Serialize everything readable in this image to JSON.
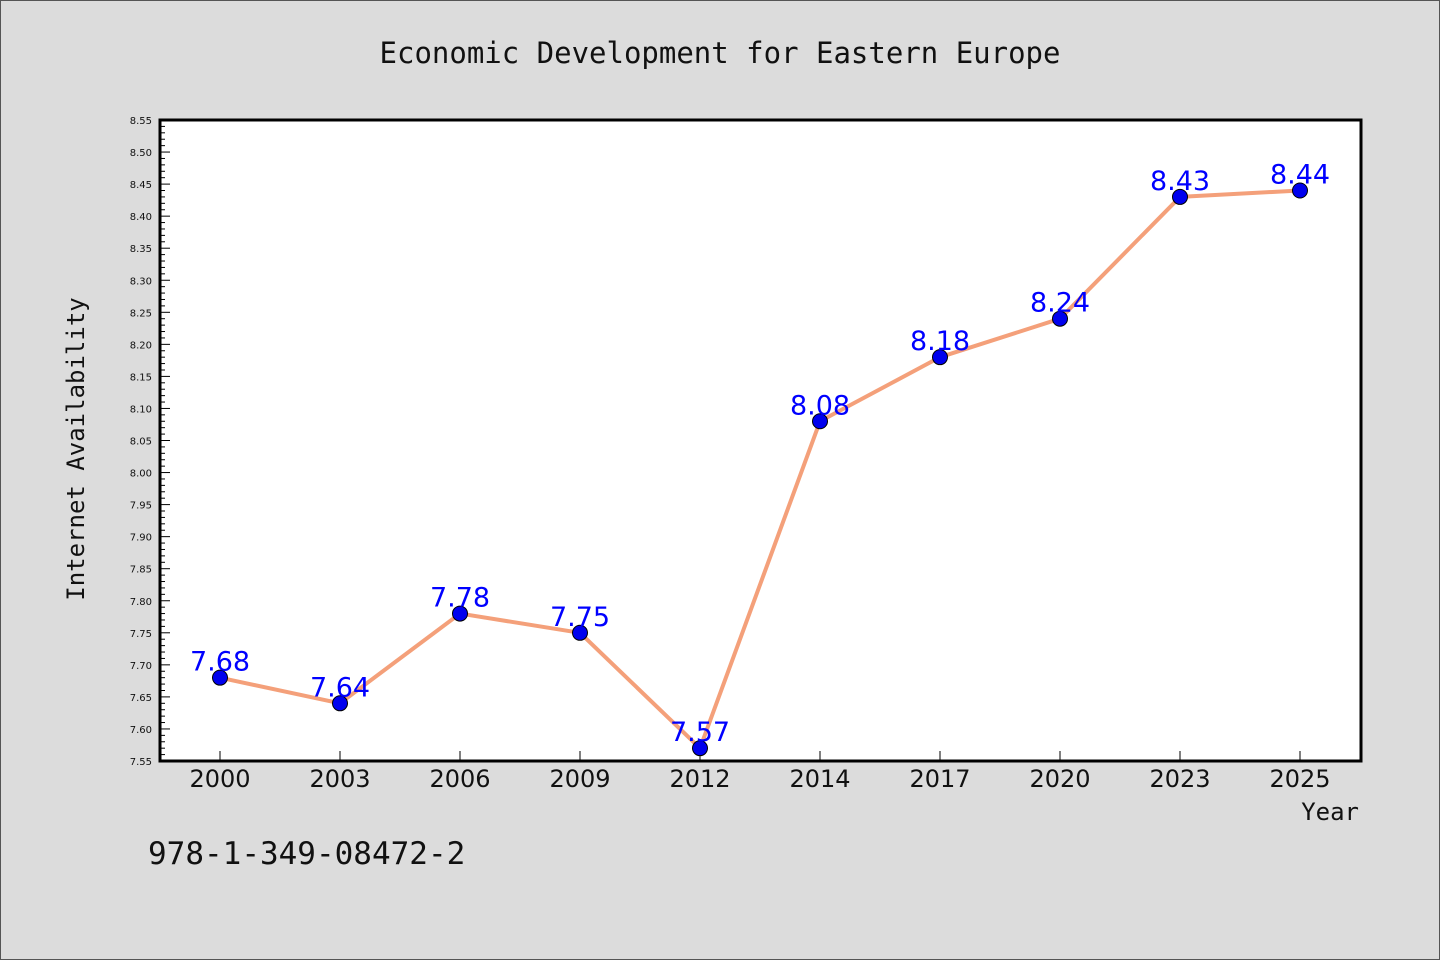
{
  "chart_data": {
    "type": "line",
    "title": "Economic Development for Eastern Europe",
    "xlabel": "Year",
    "ylabel": "Internet Availability",
    "categories": [
      "2000",
      "2003",
      "2006",
      "2009",
      "2012",
      "2014",
      "2017",
      "2020",
      "2023",
      "2025"
    ],
    "values": [
      7.68,
      7.64,
      7.78,
      7.75,
      7.57,
      8.08,
      8.18,
      8.24,
      8.43,
      8.44
    ],
    "data_labels": [
      "7.68",
      "7.64",
      "7.78",
      "7.75",
      "7.57",
      "8.08",
      "8.18",
      "8.24",
      "8.43",
      "8.44"
    ],
    "ylim": [
      7.55,
      8.55
    ],
    "yticks": [
      "7.55",
      "7.60",
      "7.65",
      "7.70",
      "7.75",
      "7.80",
      "7.85",
      "7.90",
      "7.95",
      "8.00",
      "8.05",
      "8.10",
      "8.15",
      "8.20",
      "8.25",
      "8.30",
      "8.35",
      "8.40",
      "8.45",
      "8.50",
      "8.55"
    ],
    "grid": false,
    "legend": "none",
    "line_color": "#f4a07a",
    "marker_color": "#0000ee",
    "label_color": "#0000ff"
  },
  "footer": {
    "isbn": "978-1-349-08472-2"
  }
}
